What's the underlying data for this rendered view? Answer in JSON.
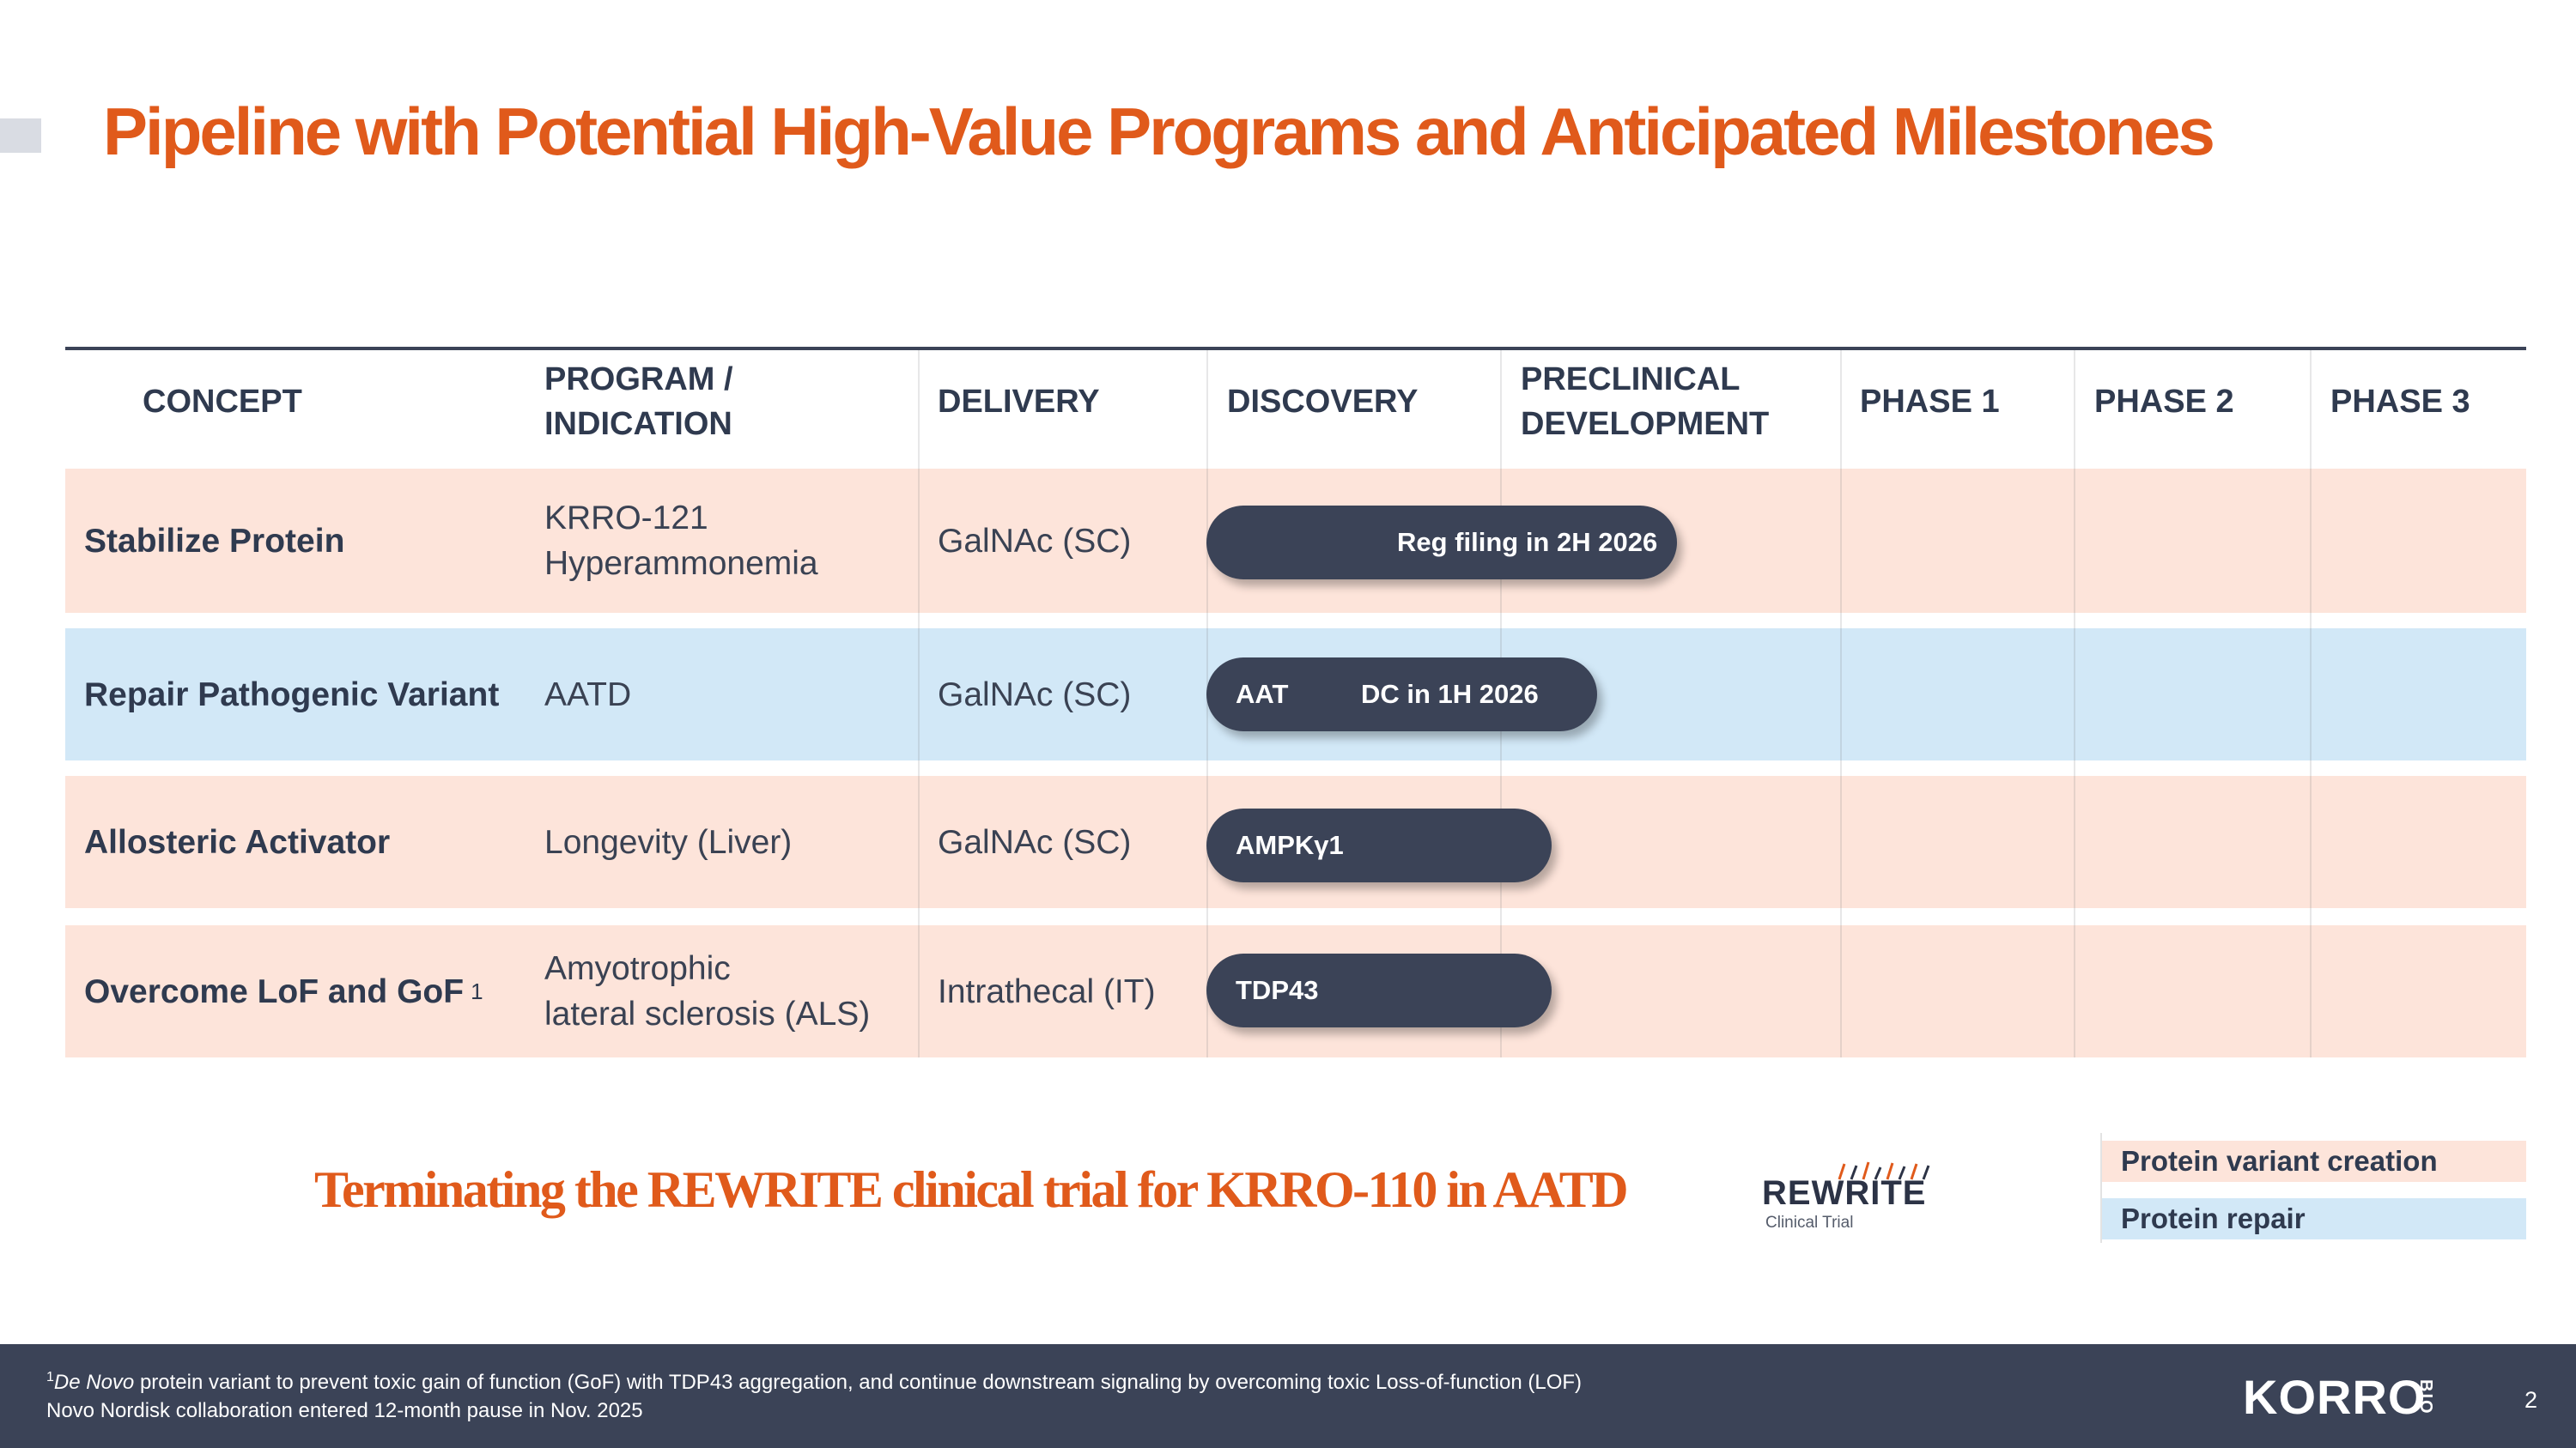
{
  "slide": {
    "title": "Pipeline with Potential High-Value Programs and Anticipated Milestones",
    "page_number": "2"
  },
  "table": {
    "headers": {
      "concept": "CONCEPT",
      "program": "PROGRAM /\nINDICATION",
      "delivery": "DELIVERY",
      "discovery": "DISCOVERY",
      "preclinical": "PRECLINICAL\nDEVELOPMENT",
      "phase1": "PHASE 1",
      "phase2": "PHASE 2",
      "phase3": "PHASE 3"
    },
    "rows": [
      {
        "concept": "Stabilize Protein",
        "program": "KRRO-121\nHyperammonemia",
        "delivery": "GalNAc (SC)",
        "bar_label": "",
        "bar_milestone": "Reg filing in 2H 2026",
        "category": "Protein variant creation"
      },
      {
        "concept": "Repair Pathogenic Variant",
        "program": "AATD",
        "delivery": "GalNAc (SC)",
        "bar_label": "AAT",
        "bar_milestone": "DC in 1H 2026",
        "category": "Protein repair"
      },
      {
        "concept": "Allosteric Activator",
        "program": "Longevity (Liver)",
        "delivery": "GalNAc (SC)",
        "bar_label": "AMPKγ1",
        "bar_milestone": "",
        "category": "Protein variant creation"
      },
      {
        "concept": "Overcome LoF and GoF",
        "concept_footnote": "1",
        "program": "Amyotrophic\nlateral sclerosis (ALS)",
        "delivery": "Intrathecal (IT)",
        "bar_label": "TDP43",
        "bar_milestone": "",
        "category": "Protein variant creation"
      }
    ]
  },
  "headline": "Terminating the REWRITE clinical trial for KRRO-110 in AATD",
  "rewrite_logo": {
    "word": "REWRITE",
    "subtitle": "Clinical Trial"
  },
  "legend": [
    {
      "label": "Protein variant creation",
      "color": "#fde4da"
    },
    {
      "label": "Protein repair",
      "color": "#d2e8f7"
    }
  ],
  "footer": {
    "footnote_marker": "1",
    "footnote_italic": "De Novo",
    "footnote_text": " protein variant to prevent toxic gain of function (GoF) with TDP43 aggregation, and continue downstream signaling by overcoming toxic Loss-of-function (LOF)",
    "note2": "Novo Nordisk collaboration entered 12-month pause in Nov. 2025",
    "brand": "KORRO",
    "brand_suffix": "BIO"
  },
  "colors": {
    "accent_orange": "#e05a1b",
    "navy": "#3b4357",
    "pink_row": "#fde4da",
    "blue_row": "#d2e8f7"
  }
}
